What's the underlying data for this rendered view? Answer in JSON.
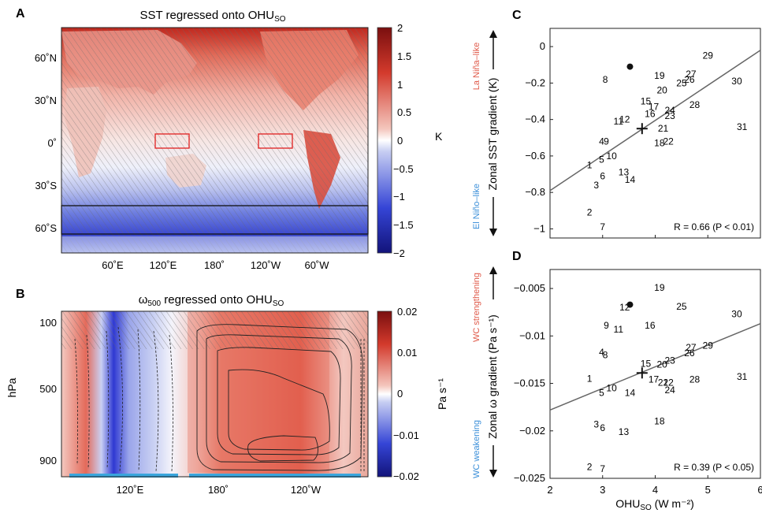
{
  "colors": {
    "warm": "#c8281e",
    "cool": "#2233c8",
    "label_red": "#e05a4a",
    "label_blue": "#3b8fd9",
    "fit_line": "#666666",
    "bar_blue": "#3aa6dd",
    "box_red": "#e02020"
  },
  "panel_a": {
    "letter": "A",
    "title": "SST regressed onto OHU",
    "title_sub": "SO",
    "lat_ticks": [
      "60˚N",
      "30˚N",
      "0˚",
      "30˚S",
      "60˚S"
    ],
    "lon_ticks": [
      "60˚E",
      "120˚E",
      "180˚",
      "120˚W",
      "60˚W"
    ],
    "colorbar": {
      "ticks": [
        "2",
        "1.5",
        "1",
        "0.5",
        "0",
        "−0.5",
        "−1",
        "−1.5",
        "−2"
      ],
      "unit": "K",
      "range": [
        -2,
        2
      ]
    }
  },
  "panel_b": {
    "letter": "B",
    "title": "ω",
    "title_sub": "500",
    "title_rest": " regressed onto OHU",
    "title_sub2": "SO",
    "y_label": "hPa",
    "y_ticks": [
      "100",
      "500",
      "900"
    ],
    "x_ticks": [
      "120˚E",
      "180˚",
      "120˚W"
    ],
    "colorbar": {
      "ticks": [
        "0.02",
        "0.01",
        "0",
        "−0.01",
        "−0.02"
      ],
      "unit": "Pa s⁻¹",
      "range": [
        -0.02,
        0.02
      ]
    }
  },
  "chart_data": [
    {
      "type": "scatter",
      "panel": "C",
      "ylabel": "Zonal SST gradient (K)",
      "side_label_top": "La Niña–like",
      "side_label_bottom": "El Niño–like",
      "xlim": [
        2,
        6
      ],
      "ylim": [
        -1.05,
        0.1
      ],
      "x_ticks": [
        2,
        3,
        4,
        5,
        6
      ],
      "y_ticks": [
        "0",
        "−0.2",
        "−0.4",
        "−0.6",
        "−0.8",
        "−1"
      ],
      "y_tick_values": [
        0,
        -0.2,
        -0.4,
        -0.6,
        -0.8,
        -1
      ],
      "annotation": "R = 0.66 (P < 0.01)",
      "fit_line": {
        "x": [
          2,
          6
        ],
        "y": [
          -0.79,
          -0.02
        ]
      },
      "mean_marker": {
        "x": 3.75,
        "y": -0.45
      },
      "dot_marker": {
        "x": 3.52,
        "y": -0.11
      },
      "points": [
        {
          "label": "1",
          "x": 2.75,
          "y": -0.65
        },
        {
          "label": "2",
          "x": 2.75,
          "y": -0.91
        },
        {
          "label": "3",
          "x": 2.88,
          "y": -0.76
        },
        {
          "label": "4",
          "x": 2.98,
          "y": -0.52
        },
        {
          "label": "5",
          "x": 2.98,
          "y": -0.62
        },
        {
          "label": "6",
          "x": 3.0,
          "y": -0.71
        },
        {
          "label": "7",
          "x": 3.0,
          "y": -0.99
        },
        {
          "label": "8",
          "x": 3.05,
          "y": -0.18
        },
        {
          "label": "9",
          "x": 3.07,
          "y": -0.52
        },
        {
          "label": "10",
          "x": 3.17,
          "y": -0.6
        },
        {
          "label": "11",
          "x": 3.3,
          "y": -0.41
        },
        {
          "label": "12",
          "x": 3.42,
          "y": -0.4
        },
        {
          "label": "13",
          "x": 3.4,
          "y": -0.69
        },
        {
          "label": "14",
          "x": 3.52,
          "y": -0.73
        },
        {
          "label": "15",
          "x": 3.82,
          "y": -0.3
        },
        {
          "label": "16",
          "x": 3.9,
          "y": -0.37
        },
        {
          "label": "17",
          "x": 3.97,
          "y": -0.33
        },
        {
          "label": "18",
          "x": 4.08,
          "y": -0.53
        },
        {
          "label": "19",
          "x": 4.08,
          "y": -0.16
        },
        {
          "label": "20",
          "x": 4.13,
          "y": -0.24
        },
        {
          "label": "21",
          "x": 4.15,
          "y": -0.45
        },
        {
          "label": "22",
          "x": 4.25,
          "y": -0.52
        },
        {
          "label": "23",
          "x": 4.28,
          "y": -0.38
        },
        {
          "label": "24",
          "x": 4.28,
          "y": -0.35
        },
        {
          "label": "25",
          "x": 4.5,
          "y": -0.2
        },
        {
          "label": "26",
          "x": 4.65,
          "y": -0.18
        },
        {
          "label": "27",
          "x": 4.68,
          "y": -0.15
        },
        {
          "label": "28",
          "x": 4.75,
          "y": -0.32
        },
        {
          "label": "29",
          "x": 5.0,
          "y": -0.05
        },
        {
          "label": "30",
          "x": 5.55,
          "y": -0.19
        },
        {
          "label": "31",
          "x": 5.65,
          "y": -0.44
        }
      ]
    },
    {
      "type": "scatter",
      "panel": "D",
      "ylabel": "Zonal ω gradient (Pa s⁻¹)",
      "side_label_top": "WC strengthening",
      "side_label_bottom": "WC weakening",
      "xlabel": "OHU",
      "xlabel_sub": "SO",
      "xlabel_rest": " (W m⁻²)",
      "xlim": [
        2,
        6
      ],
      "ylim": [
        -0.025,
        -0.003
      ],
      "x_ticks": [
        2,
        3,
        4,
        5,
        6
      ],
      "y_ticks": [
        "−0.005",
        "−0.01",
        "−0.015",
        "−0.02",
        "−0.025"
      ],
      "y_tick_values": [
        -0.005,
        -0.01,
        -0.015,
        -0.02,
        -0.025
      ],
      "annotation": "R = 0.39 (P < 0.05)",
      "fit_line": {
        "x": [
          2,
          6
        ],
        "y": [
          -0.0178,
          -0.0087
        ]
      },
      "mean_marker": {
        "x": 3.75,
        "y": -0.0139
      },
      "dot_marker": {
        "x": 3.52,
        "y": -0.0067
      },
      "points": [
        {
          "label": "1",
          "x": 2.75,
          "y": -0.0145
        },
        {
          "label": "2",
          "x": 2.75,
          "y": -0.0238
        },
        {
          "label": "3",
          "x": 2.88,
          "y": -0.0193
        },
        {
          "label": "4",
          "x": 2.98,
          "y": -0.0117
        },
        {
          "label": "5",
          "x": 2.98,
          "y": -0.016
        },
        {
          "label": "6",
          "x": 3.0,
          "y": -0.0197
        },
        {
          "label": "7",
          "x": 3.0,
          "y": -0.024
        },
        {
          "label": "8",
          "x": 3.05,
          "y": -0.012
        },
        {
          "label": "9",
          "x": 3.07,
          "y": -0.0089
        },
        {
          "label": "10",
          "x": 3.17,
          "y": -0.0155
        },
        {
          "label": "11",
          "x": 3.3,
          "y": -0.0093
        },
        {
          "label": "12",
          "x": 3.42,
          "y": -0.007
        },
        {
          "label": "13",
          "x": 3.4,
          "y": -0.0201
        },
        {
          "label": "14",
          "x": 3.52,
          "y": -0.016
        },
        {
          "label": "15",
          "x": 3.82,
          "y": -0.0129
        },
        {
          "label": "16",
          "x": 3.9,
          "y": -0.0089
        },
        {
          "label": "17",
          "x": 3.97,
          "y": -0.0146
        },
        {
          "label": "18",
          "x": 4.08,
          "y": -0.019
        },
        {
          "label": "19",
          "x": 4.08,
          "y": -0.0049
        },
        {
          "label": "20",
          "x": 4.13,
          "y": -0.013
        },
        {
          "label": "21",
          "x": 4.15,
          "y": -0.0149
        },
        {
          "label": "22",
          "x": 4.25,
          "y": -0.0149
        },
        {
          "label": "23",
          "x": 4.28,
          "y": -0.0126
        },
        {
          "label": "24",
          "x": 4.28,
          "y": -0.0157
        },
        {
          "label": "25",
          "x": 4.5,
          "y": -0.0069
        },
        {
          "label": "26",
          "x": 4.65,
          "y": -0.0118
        },
        {
          "label": "27",
          "x": 4.68,
          "y": -0.0112
        },
        {
          "label": "28",
          "x": 4.75,
          "y": -0.0146
        },
        {
          "label": "29",
          "x": 5.0,
          "y": -0.011
        },
        {
          "label": "30",
          "x": 5.55,
          "y": -0.0077
        },
        {
          "label": "31",
          "x": 5.65,
          "y": -0.0143
        }
      ]
    }
  ]
}
